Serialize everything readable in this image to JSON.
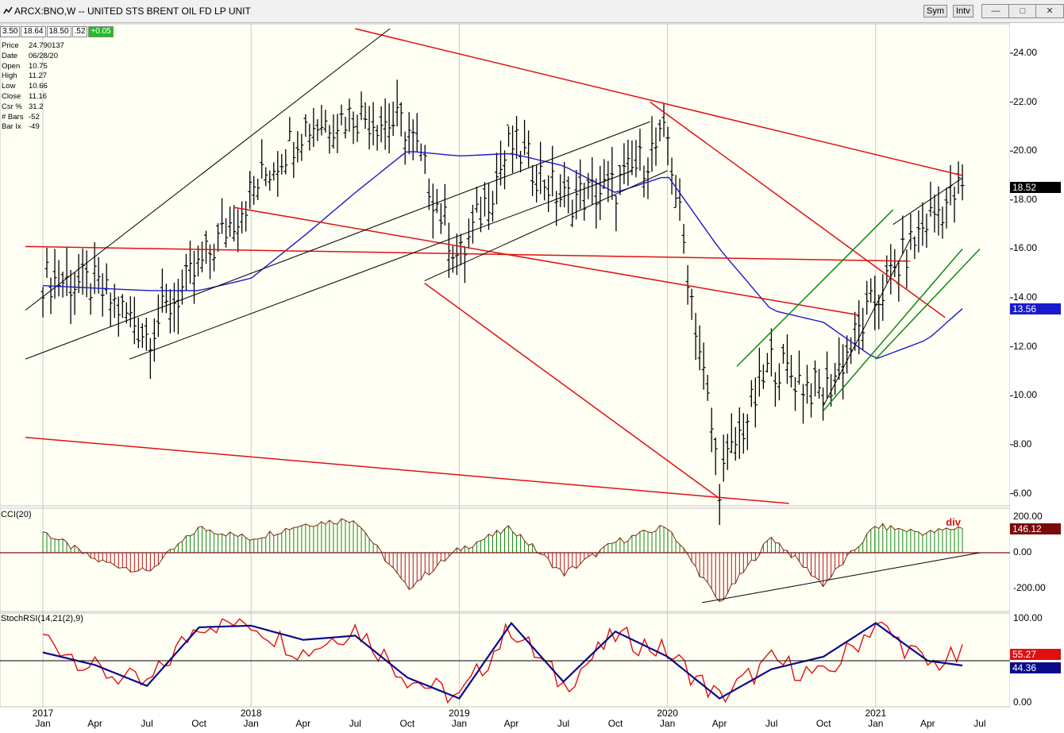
{
  "window": {
    "title": "ARCX:BNO,W -- UNITED STS BRENT OIL FD LP UNIT",
    "buttons": [
      "Sym",
      "Intv"
    ],
    "controls": [
      "—",
      "□",
      "✕"
    ]
  },
  "quote_bar": {
    "open": "3.50",
    "high": "18.64",
    "low": "18.50",
    "last": ".52",
    "change": "+0.05"
  },
  "info_panel": [
    {
      "k": "Price",
      "v": "24.790137"
    },
    {
      "k": "Date",
      "v": "06/28/20"
    },
    {
      "k": "Open",
      "v": "10.75"
    },
    {
      "k": "High",
      "v": "11.27"
    },
    {
      "k": "Low",
      "v": "10.66"
    },
    {
      "k": "Close",
      "v": "11.16"
    },
    {
      "k": "Csr %",
      "v": "31.2"
    },
    {
      "k": "# Bars",
      "v": "-52"
    },
    {
      "k": "Bar Ix",
      "v": "-49"
    }
  ],
  "colors": {
    "bars": "#000000",
    "ma": "#1a1acc",
    "trend_red": "#dd1111",
    "channel_green": "#118811",
    "cci_up": "#118811",
    "cci_down": "#bb1111",
    "stoch_k": "#e01010",
    "stoch_d": "#0b0b8a",
    "background": "#fffff4",
    "grid": "#c8c8c8"
  },
  "chart_data": [
    {
      "type": "ohlc",
      "panel": "price",
      "series": [
        {
          "name": "BNO",
          "interval": "weekly",
          "x": [
            "2017-01",
            "2017-04",
            "2017-07",
            "2017-10",
            "2018-01",
            "2018-04",
            "2018-07",
            "2018-10",
            "2019-01",
            "2019-04",
            "2019-07",
            "2019-10",
            "2020-01",
            "2020-04",
            "2020-07",
            "2020-10",
            "2021-01",
            "2021-04",
            "2021-06"
          ],
          "y": [
            14.8,
            14.5,
            12.5,
            15.2,
            18.3,
            21.0,
            21.5,
            21.0,
            15.5,
            20.3,
            18.0,
            18.5,
            20.6,
            6.5,
            11.4,
            10.0,
            13.9,
            17.2,
            18.5
          ]
        },
        {
          "name": "MA",
          "x": [
            "2017-01",
            "2017-07",
            "2017-10",
            "2018-01",
            "2018-04",
            "2018-07",
            "2018-10",
            "2019-01",
            "2019-04",
            "2019-07",
            "2019-10",
            "2020-01",
            "2020-04",
            "2020-07",
            "2020-10",
            "2021-01",
            "2021-04",
            "2021-06"
          ],
          "y": [
            14.5,
            14.3,
            14.3,
            14.8,
            16.5,
            18.3,
            20.0,
            19.8,
            19.9,
            19.4,
            18.3,
            19.0,
            16.0,
            13.5,
            13.0,
            11.5,
            12.3,
            13.56
          ]
        }
      ],
      "ylim": [
        5.5,
        25.2
      ],
      "yticks": [
        "24.00",
        "22.00",
        "20.00",
        "18.00",
        "16.00",
        "14.00",
        "12.00",
        "10.00",
        "8.00",
        "6.00"
      ],
      "last_price": "18.52",
      "ma_value": "13.56"
    },
    {
      "type": "bar",
      "panel": "CCI",
      "title": "CCI(20)",
      "yticks": [
        "200.00",
        "0.00",
        "-200.00"
      ],
      "ylim": [
        -330,
        250
      ],
      "last_value": "146.12",
      "annotation": "div",
      "x": [
        "2017-01",
        "2017-04",
        "2017-07",
        "2017-10",
        "2018-01",
        "2018-04",
        "2018-07",
        "2018-10",
        "2019-01",
        "2019-04",
        "2019-07",
        "2019-10",
        "2020-01",
        "2020-04",
        "2020-07",
        "2020-10",
        "2021-01",
        "2021-04",
        "2021-06"
      ],
      "values": [
        120,
        -40,
        -110,
        140,
        80,
        160,
        190,
        -200,
        20,
        140,
        -120,
        60,
        150,
        -280,
        90,
        -180,
        150,
        110,
        146
      ]
    },
    {
      "type": "line",
      "panel": "StochRSI",
      "title": "StochRSI(14,21(2),9)",
      "yticks": [
        "100.00",
        "0.00"
      ],
      "ylim": [
        -5,
        107
      ],
      "series": [
        {
          "name": "K",
          "last": "55.27",
          "x": [
            "2017-01",
            "2017-04",
            "2017-07",
            "2017-10",
            "2018-01",
            "2018-04",
            "2018-07",
            "2018-10",
            "2019-01",
            "2019-04",
            "2019-07",
            "2019-10",
            "2020-01",
            "2020-04",
            "2020-07",
            "2020-10",
            "2021-01",
            "2021-04",
            "2021-06"
          ],
          "y": [
            80,
            40,
            20,
            95,
            95,
            60,
            90,
            30,
            5,
            90,
            20,
            80,
            60,
            5,
            50,
            30,
            95,
            45,
            55.27
          ]
        },
        {
          "name": "D",
          "last": "44.36",
          "x": [
            "2017-01",
            "2017-04",
            "2017-07",
            "2017-10",
            "2018-01",
            "2018-04",
            "2018-07",
            "2018-10",
            "2019-01",
            "2019-04",
            "2019-07",
            "2019-10",
            "2020-01",
            "2020-04",
            "2020-07",
            "2020-10",
            "2021-01",
            "2021-04",
            "2021-06"
          ],
          "y": [
            60,
            45,
            20,
            90,
            92,
            75,
            80,
            30,
            5,
            95,
            25,
            85,
            55,
            5,
            40,
            55,
            95,
            50,
            44.36
          ]
        }
      ]
    }
  ],
  "x_axis": {
    "years": [
      {
        "label": "2017",
        "at": "2017-01"
      },
      {
        "label": "2018",
        "at": "2018-01"
      },
      {
        "label": "2019",
        "at": "2019-01"
      },
      {
        "label": "2020",
        "at": "2020-01"
      },
      {
        "label": "2021",
        "at": "2021-01"
      }
    ],
    "months": [
      {
        "label": "Jan",
        "at": "2017-01"
      },
      {
        "label": "Apr",
        "at": "2017-04"
      },
      {
        "label": "Jul",
        "at": "2017-07"
      },
      {
        "label": "Oct",
        "at": "2017-10"
      },
      {
        "label": "Jan",
        "at": "2018-01"
      },
      {
        "label": "Apr",
        "at": "2018-04"
      },
      {
        "label": "Jul",
        "at": "2018-07"
      },
      {
        "label": "Oct",
        "at": "2018-10"
      },
      {
        "label": "Jan",
        "at": "2019-01"
      },
      {
        "label": "Apr",
        "at": "2019-04"
      },
      {
        "label": "Jul",
        "at": "2019-07"
      },
      {
        "label": "Oct",
        "at": "2019-10"
      },
      {
        "label": "Jan",
        "at": "2020-01"
      },
      {
        "label": "Apr",
        "at": "2020-04"
      },
      {
        "label": "Jul",
        "at": "2020-07"
      },
      {
        "label": "Oct",
        "at": "2020-10"
      },
      {
        "label": "Jan",
        "at": "2021-01"
      },
      {
        "label": "Apr",
        "at": "2021-04"
      },
      {
        "label": "Jul",
        "at": "2021-07"
      }
    ]
  }
}
